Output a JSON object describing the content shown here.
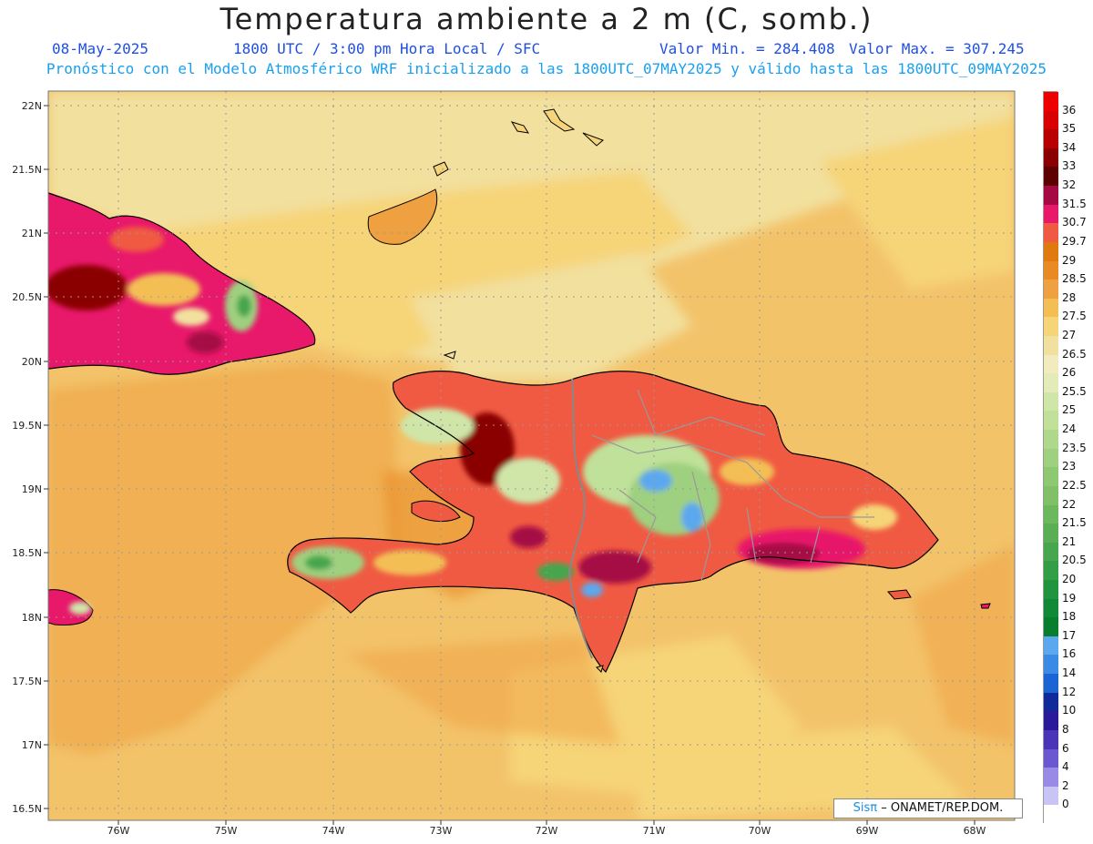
{
  "header": {
    "title": "Temperatura ambiente a 2 m (C, somb.)",
    "date": "08-May-2025",
    "time_text": "1800 UTC / 3:00 pm Hora Local / SFC",
    "min_text": "Valor Min. = 284.408",
    "max_text": "Valor Max. = 307.245",
    "forecast_text": "Pronóstico con el Modelo Atmosférico WRF inicializado a las 1800UTC_07MAY2025 y válido hasta las  1800UTC_09MAY2025"
  },
  "map": {
    "lat_labels": [
      "22N",
      "21.5N",
      "21N",
      "20.5N",
      "20N",
      "19.5N",
      "19N",
      "18.5N",
      "18N",
      "17.5N",
      "17N",
      "16.5N"
    ],
    "lon_labels": [
      "76W",
      "75W",
      "74W",
      "73W",
      "72W",
      "71W",
      "70W",
      "69W",
      "68W"
    ],
    "ocean_color": "#f3c36a"
  },
  "colorbar": {
    "levels": [
      "36",
      "35",
      "34",
      "33",
      "32",
      "31.5",
      "30.7",
      "29.7",
      "29",
      "28.5",
      "28",
      "27.5",
      "27",
      "26.5",
      "26",
      "25.5",
      "25",
      "24",
      "23.5",
      "23",
      "22.5",
      "22",
      "21.5",
      "21",
      "20.5",
      "20",
      "19",
      "18",
      "17",
      "16",
      "14",
      "12",
      "10",
      "8",
      "6",
      "4",
      "2",
      "0"
    ],
    "colors": [
      "#ee0000",
      "#d80000",
      "#b80000",
      "#8a0000",
      "#5e0000",
      "#a50a45",
      "#e8186a",
      "#f05a42",
      "#e07a10",
      "#e98a25",
      "#efa040",
      "#f3bf55",
      "#f6d478",
      "#f2e09e",
      "#f3ebc0",
      "#e3ecb8",
      "#cfe6a8",
      "#bfe19a",
      "#afd88c",
      "#9fd07f",
      "#8fc873",
      "#7fc068",
      "#6db85d",
      "#5aaf55",
      "#47a64e",
      "#339e46",
      "#20943e",
      "#108a36",
      "#0a7e2f",
      "#5ba8ee",
      "#3a8ae6",
      "#1c64d4",
      "#102a9a",
      "#2a1a9a",
      "#4a34b8",
      "#6a58d0",
      "#9a8ae8",
      "#c8c4f4",
      "#ffffff"
    ]
  },
  "credit": {
    "sis": "Sisπ",
    "org": "– ONAMET/REP.DOM."
  }
}
